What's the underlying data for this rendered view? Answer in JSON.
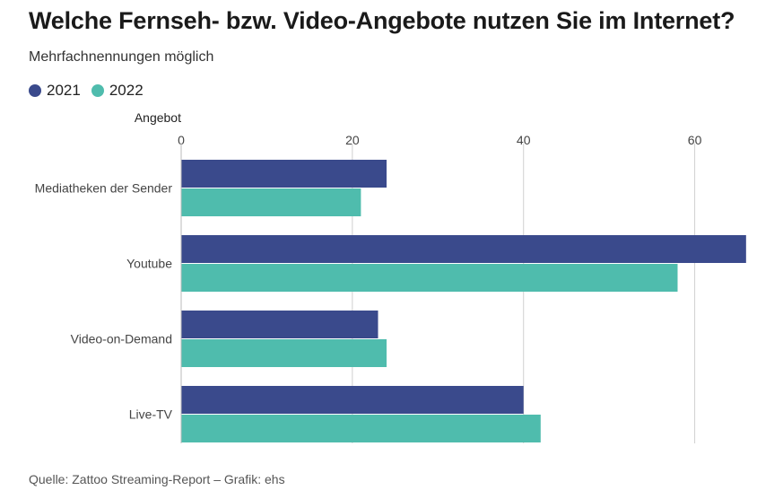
{
  "title": "Welche Fernseh- bzw. Video-Angebote nutzen Sie im Internet?",
  "subtitle": "Mehrfachnennungen möglich",
  "source": "Quelle: Zattoo Streaming-Report – Grafik: ehs",
  "colors": {
    "s2021": "#3a4a8c",
    "s2022": "#4fbcad",
    "grid": "#d0d0d0",
    "tick": "#444444",
    "label": "#444444"
  },
  "chart_data": {
    "type": "bar",
    "orientation": "horizontal",
    "categories": [
      "Mediatheken der Sender",
      "Youtube",
      "Video-on-Demand",
      "Live-TV"
    ],
    "series": [
      {
        "name": "2021",
        "values": [
          24,
          66,
          23,
          40
        ]
      },
      {
        "name": "2022",
        "values": [
          21,
          58,
          24,
          42
        ]
      }
    ],
    "ylabel": "Angebot",
    "xlim": [
      0,
      70
    ],
    "xticks": [
      0,
      20,
      40,
      60
    ],
    "grid": true,
    "legend": "top-left"
  }
}
